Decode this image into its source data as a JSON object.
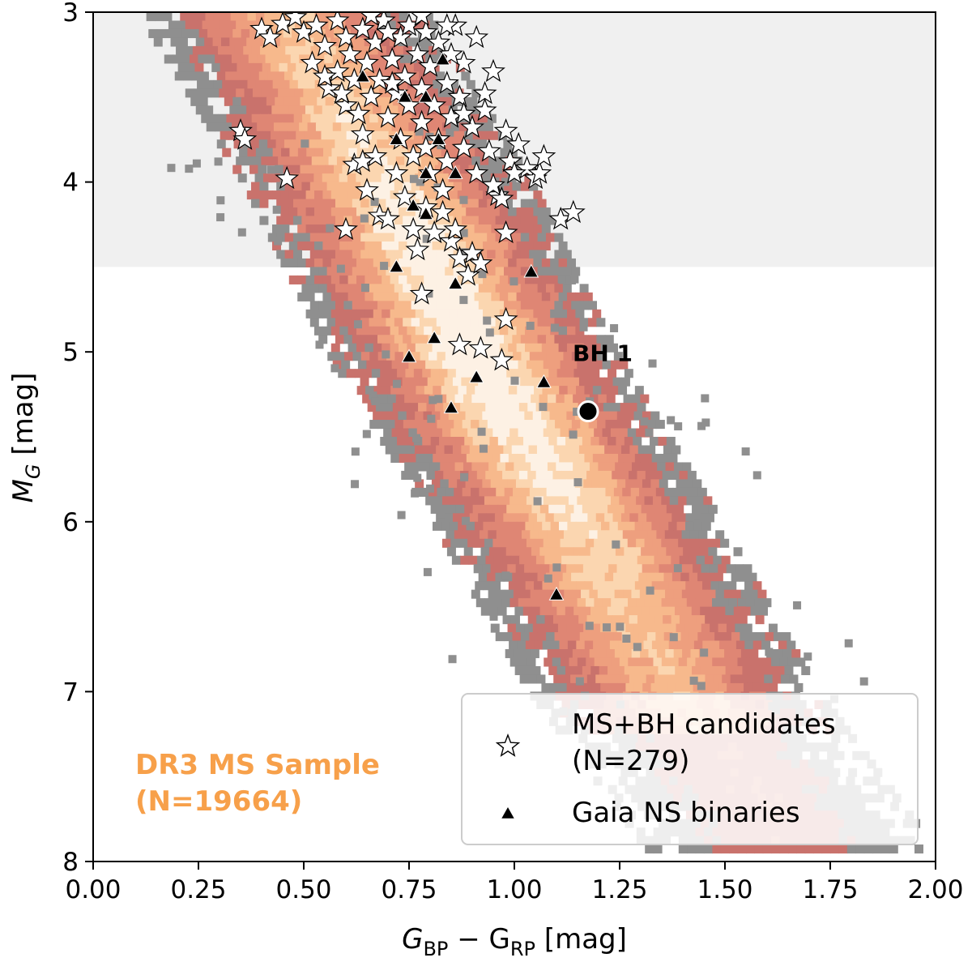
{
  "chart_data": {
    "type": "scatter",
    "xlabel": {
      "main": "G",
      "sub1": "BP",
      "mid": " − G",
      "sub2": "RP",
      "unit": " [mag]"
    },
    "ylabel": {
      "main": "M",
      "sub": "G",
      "unit": " [mag]"
    },
    "xlim": [
      0.0,
      2.0
    ],
    "ylim": [
      8,
      3
    ],
    "y_inverted": true,
    "x_ticks": [
      "0.00",
      "0.25",
      "0.50",
      "0.75",
      "1.00",
      "1.25",
      "1.50",
      "1.75",
      "2.00"
    ],
    "y_ticks": [
      "3",
      "4",
      "5",
      "6",
      "7",
      "8"
    ],
    "shaded_region": {
      "y_from": 3.0,
      "y_to": 4.5,
      "color": "#f0f0f0"
    },
    "density_background": {
      "name_line1": "DR3 MS Sample",
      "name_line2": "(N=19664)",
      "color": "#f7a04a",
      "ridge": [
        [
          0.45,
          3.0
        ],
        [
          0.7,
          4.0
        ],
        [
          0.9,
          5.0
        ],
        [
          1.15,
          6.0
        ],
        [
          1.38,
          7.0
        ],
        [
          1.62,
          7.8
        ]
      ],
      "width": 0.35
    },
    "legend": {
      "placement": "lower-right",
      "entries": [
        {
          "marker": "star",
          "line1": "MS+BH candidates",
          "line2": " (N=279)"
        },
        {
          "marker": "triangle",
          "line1": "Gaia NS binaries"
        }
      ]
    },
    "series": [
      {
        "name": "MS+BH candidates",
        "marker": "star",
        "points": [
          [
            0.35,
            3.7
          ],
          [
            0.36,
            3.75
          ],
          [
            0.4,
            3.1
          ],
          [
            0.45,
            3.07
          ],
          [
            0.46,
            3.98
          ],
          [
            0.42,
            3.15
          ],
          [
            0.48,
            3.03
          ],
          [
            0.5,
            3.12
          ],
          [
            0.52,
            3.3
          ],
          [
            0.53,
            3.08
          ],
          [
            0.55,
            3.2
          ],
          [
            0.56,
            3.45
          ],
          [
            0.58,
            3.05
          ],
          [
            0.58,
            3.35
          ],
          [
            0.6,
            3.15
          ],
          [
            0.6,
            3.55
          ],
          [
            0.61,
            3.25
          ],
          [
            0.62,
            3.9
          ],
          [
            0.62,
            3.4
          ],
          [
            0.63,
            3.6
          ],
          [
            0.64,
            3.1
          ],
          [
            0.64,
            3.72
          ],
          [
            0.65,
            3.3
          ],
          [
            0.65,
            4.05
          ],
          [
            0.66,
            3.5
          ],
          [
            0.67,
            3.18
          ],
          [
            0.67,
            3.85
          ],
          [
            0.68,
            4.2
          ],
          [
            0.68,
            3.4
          ],
          [
            0.69,
            3.05
          ],
          [
            0.7,
            3.62
          ],
          [
            0.7,
            4.22
          ],
          [
            0.71,
            3.28
          ],
          [
            0.72,
            3.48
          ],
          [
            0.72,
            3.95
          ],
          [
            0.73,
            3.15
          ],
          [
            0.73,
            3.75
          ],
          [
            0.74,
            3.38
          ],
          [
            0.74,
            4.09
          ],
          [
            0.75,
            3.55
          ],
          [
            0.75,
            3.08
          ],
          [
            0.76,
            3.85
          ],
          [
            0.76,
            4.28
          ],
          [
            0.77,
            3.25
          ],
          [
            0.77,
            4.4
          ],
          [
            0.78,
            3.45
          ],
          [
            0.78,
            3.65
          ],
          [
            0.79,
            4.15
          ],
          [
            0.79,
            3.12
          ],
          [
            0.8,
            3.95
          ],
          [
            0.8,
            3.32
          ],
          [
            0.81,
            4.3
          ],
          [
            0.81,
            3.55
          ],
          [
            0.82,
            3.75
          ],
          [
            0.82,
            3.18
          ],
          [
            0.83,
            4.05
          ],
          [
            0.83,
            4.18
          ],
          [
            0.84,
            3.42
          ],
          [
            0.84,
            3.88
          ],
          [
            0.85,
            4.35
          ],
          [
            0.85,
            3.62
          ],
          [
            0.86,
            3.08
          ],
          [
            0.86,
            4.28
          ],
          [
            0.87,
            3.5
          ],
          [
            0.87,
            4.45
          ],
          [
            0.88,
            3.3
          ],
          [
            0.88,
            3.8
          ],
          [
            0.89,
            4.55
          ],
          [
            0.9,
            3.68
          ],
          [
            0.9,
            4.42
          ],
          [
            0.91,
            3.15
          ],
          [
            0.91,
            3.95
          ],
          [
            0.92,
            4.48
          ],
          [
            0.93,
            3.58
          ],
          [
            0.94,
            3.82
          ],
          [
            0.95,
            3.35
          ],
          [
            0.96,
            4.08
          ],
          [
            0.97,
            4.1
          ],
          [
            0.98,
            3.7
          ],
          [
            0.98,
            4.3
          ],
          [
            0.99,
            3.88
          ],
          [
            1.01,
            3.78
          ],
          [
            1.03,
            3.92
          ],
          [
            1.05,
            3.98
          ],
          [
            1.06,
            3.95
          ],
          [
            1.07,
            3.85
          ],
          [
            1.11,
            4.22
          ],
          [
            1.14,
            4.18
          ],
          [
            0.6,
            4.28
          ],
          [
            0.78,
            4.66
          ],
          [
            0.87,
            4.96
          ],
          [
            0.92,
            4.98
          ],
          [
            0.97,
            5.05
          ],
          [
            0.98,
            4.81
          ],
          [
            0.85,
            3.25
          ],
          [
            0.78,
            3.02
          ],
          [
            0.84,
            3.08
          ],
          [
            0.7,
            3.12
          ],
          [
            0.66,
            3.02
          ],
          [
            0.55,
            3.38
          ],
          [
            0.88,
            3.6
          ],
          [
            0.93,
            3.48
          ],
          [
            0.71,
            3.42
          ],
          [
            0.59,
            3.48
          ],
          [
            0.79,
            3.8
          ],
          [
            0.64,
            3.88
          ],
          [
            0.95,
            4.02
          ],
          [
            1.0,
            3.95
          ]
        ]
      },
      {
        "name": "Gaia NS binaries",
        "marker": "triangle",
        "points": [
          [
            0.64,
            3.38
          ],
          [
            0.74,
            3.5
          ],
          [
            0.79,
            3.5
          ],
          [
            0.83,
            3.28
          ],
          [
            0.72,
            3.75
          ],
          [
            0.82,
            3.75
          ],
          [
            0.79,
            3.95
          ],
          [
            0.86,
            3.95
          ],
          [
            0.76,
            4.14
          ],
          [
            0.79,
            4.19
          ],
          [
            0.72,
            4.5
          ],
          [
            0.86,
            4.6
          ],
          [
            1.04,
            4.53
          ],
          [
            0.75,
            5.03
          ],
          [
            0.81,
            4.92
          ],
          [
            0.91,
            5.15
          ],
          [
            1.07,
            5.18
          ],
          [
            0.85,
            5.33
          ],
          [
            1.1,
            6.43
          ]
        ]
      }
    ],
    "highlight_point": {
      "label": "BH 1",
      "x": 1.175,
      "y": 5.35
    }
  }
}
